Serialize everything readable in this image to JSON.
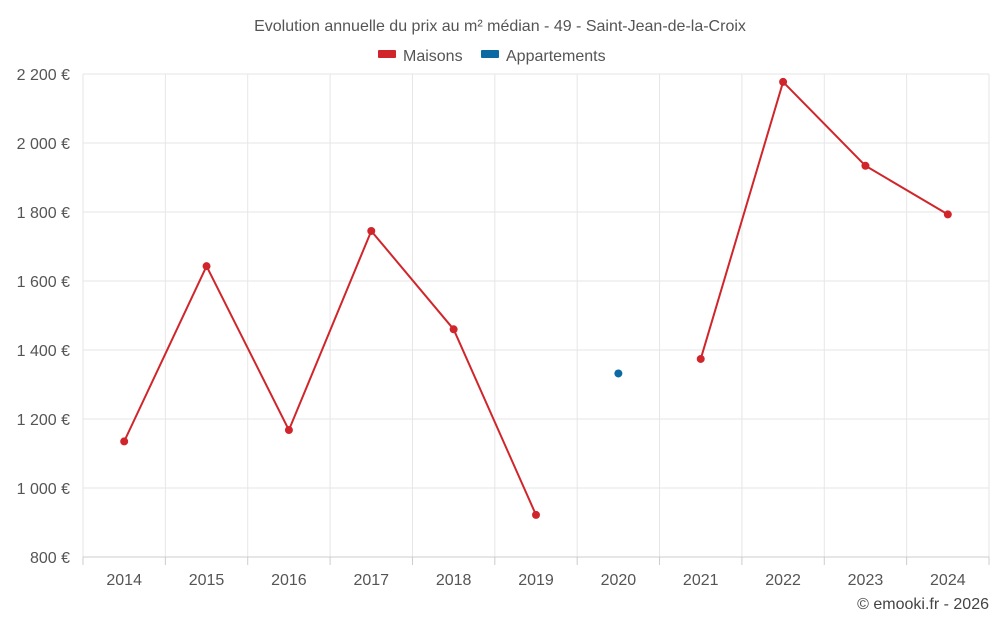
{
  "chart_data": {
    "type": "line",
    "title": "Evolution annuelle du prix au m² médian - 49 - Saint-Jean-de-la-Croix",
    "categories": [
      "2014",
      "2015",
      "2016",
      "2017",
      "2018",
      "2019",
      "2020",
      "2021",
      "2022",
      "2023",
      "2024"
    ],
    "series": [
      {
        "name": "Maisons",
        "color": "#d0262b",
        "values": [
          1135,
          1643,
          1168,
          1745,
          1460,
          922,
          null,
          1374,
          2177,
          1934,
          1793
        ]
      },
      {
        "name": "Appartements",
        "color": "#0a6aa1",
        "values": [
          null,
          null,
          null,
          null,
          null,
          null,
          1332,
          null,
          null,
          null,
          null
        ]
      }
    ],
    "ylim": [
      800,
      2200
    ],
    "yticks": [
      800,
      1000,
      1200,
      1400,
      1600,
      1800,
      2000,
      2200
    ],
    "ytick_labels": [
      "800 €",
      "1 000 €",
      "1 200 €",
      "1 400 €",
      "1 600 €",
      "1 800 €",
      "2 000 €",
      "2 200 €"
    ],
    "xlabel": "",
    "ylabel": "",
    "grid": true,
    "legend_position": "top-center"
  },
  "credits": "© emooki.fr - 2026"
}
